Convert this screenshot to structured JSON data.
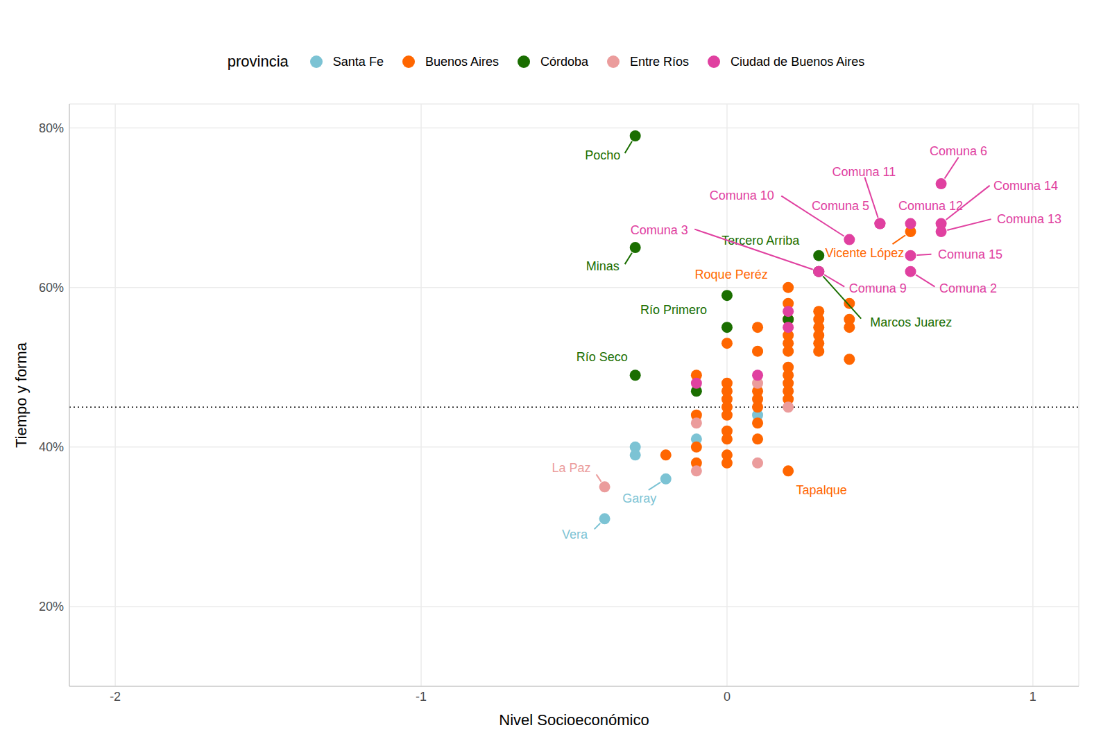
{
  "chart_data": {
    "type": "scatter",
    "x_label": "Nivel Socioeconómico",
    "y_label": "Tiempo y forma",
    "legend_title": "provincia",
    "legend": "top",
    "grid": true,
    "marker": "circle",
    "xlim": [
      -2.15,
      1.15
    ],
    "xticks": [
      -2,
      -1,
      0,
      1
    ],
    "ylim": [
      10,
      83
    ],
    "yticks": [
      {
        "value": 20,
        "label": "20%"
      },
      {
        "value": 40,
        "label": "40%"
      },
      {
        "value": 60,
        "label": "60%"
      },
      {
        "value": 80,
        "label": "80%"
      }
    ],
    "reference_lines": [
      {
        "y": 45,
        "line_style": "dotted"
      }
    ],
    "series": [
      {
        "name": "Santa Fe",
        "color": "#7cc3d4",
        "x": [
          -0.3,
          -0.3,
          -0.2,
          -0.4,
          -0.1,
          0.1
        ],
        "y": [
          40,
          39,
          36,
          31,
          41,
          44
        ],
        "labels": [
          null,
          null,
          "Garay",
          "Vera",
          null,
          null
        ]
      },
      {
        "name": "Buenos Aires",
        "color": "#ff6600",
        "x": [
          -0.2,
          -0.1,
          -0.1,
          -0.1,
          -0.1,
          0,
          0,
          0,
          0,
          0,
          0,
          0,
          0,
          0,
          0,
          0.1,
          0.1,
          0.1,
          0.1,
          0.1,
          0.1,
          0.1,
          0.2,
          0.2,
          0.2,
          0.2,
          0.2,
          0.2,
          0.2,
          0.2,
          0.2,
          0.2,
          0.2,
          0.2,
          0.3,
          0.3,
          0.3,
          0.3,
          0.3,
          0.3,
          0.4,
          0.4,
          0.4,
          0.4,
          0.6
        ],
        "y": [
          39,
          49,
          44,
          40,
          38,
          53,
          48,
          47,
          46,
          45,
          44,
          42,
          41,
          39,
          38,
          55,
          52,
          47,
          46,
          45,
          43,
          41,
          60,
          58,
          56,
          54,
          53,
          52,
          50,
          49,
          48,
          47,
          46,
          37,
          57,
          56,
          55,
          54,
          53,
          52,
          58,
          56,
          55,
          51,
          67
        ],
        "labels": [
          null,
          null,
          null,
          null,
          null,
          null,
          null,
          null,
          null,
          null,
          null,
          null,
          null,
          null,
          null,
          null,
          null,
          null,
          null,
          null,
          null,
          null,
          "Roque Peréz",
          null,
          null,
          null,
          null,
          null,
          null,
          null,
          null,
          null,
          null,
          "Tapalque",
          null,
          null,
          null,
          null,
          null,
          null,
          null,
          null,
          null,
          null,
          "Vicente López"
        ]
      },
      {
        "name": "Córdoba",
        "color": "#1a6e00",
        "x": [
          -0.3,
          -0.3,
          -0.3,
          0,
          0,
          -0.1,
          0.2,
          0.3,
          0.3
        ],
        "y": [
          79,
          65,
          49,
          59,
          55,
          47,
          56,
          64,
          62
        ],
        "labels": [
          "Pocho",
          "Minas",
          "Río Seco",
          "Río Primero",
          null,
          null,
          null,
          "Tercero Arriba",
          "Marcos Juarez"
        ]
      },
      {
        "name": "Entre Ríos",
        "color": "#eb9c9c",
        "x": [
          -0.4,
          -0.1,
          -0.1,
          0.1,
          0.1,
          0.2
        ],
        "y": [
          35,
          43,
          37,
          48,
          38,
          45
        ],
        "labels": [
          "La Paz",
          null,
          null,
          null,
          null,
          null
        ]
      },
      {
        "name": "Ciudad de Buenos Aires",
        "color": "#e040a0",
        "x": [
          0.7,
          0.7,
          0.7,
          0.6,
          0.5,
          0.5,
          0.4,
          0.6,
          0.6,
          0.3,
          0.3,
          0.2,
          0.2,
          -0.1,
          0.1
        ],
        "y": [
          73,
          68,
          67,
          68,
          68,
          68,
          66,
          64,
          62,
          62,
          62,
          57,
          55,
          48,
          49
        ],
        "labels": [
          "Comuna 6",
          "Comuna 14",
          "Comuna 13",
          "Comuna 12",
          "Comuna 11",
          "Comuna 5",
          "Comuna 10",
          "Comuna 15",
          "Comuna 2",
          "Comuna 3",
          "Comuna 9",
          null,
          null,
          null,
          null
        ]
      }
    ]
  }
}
